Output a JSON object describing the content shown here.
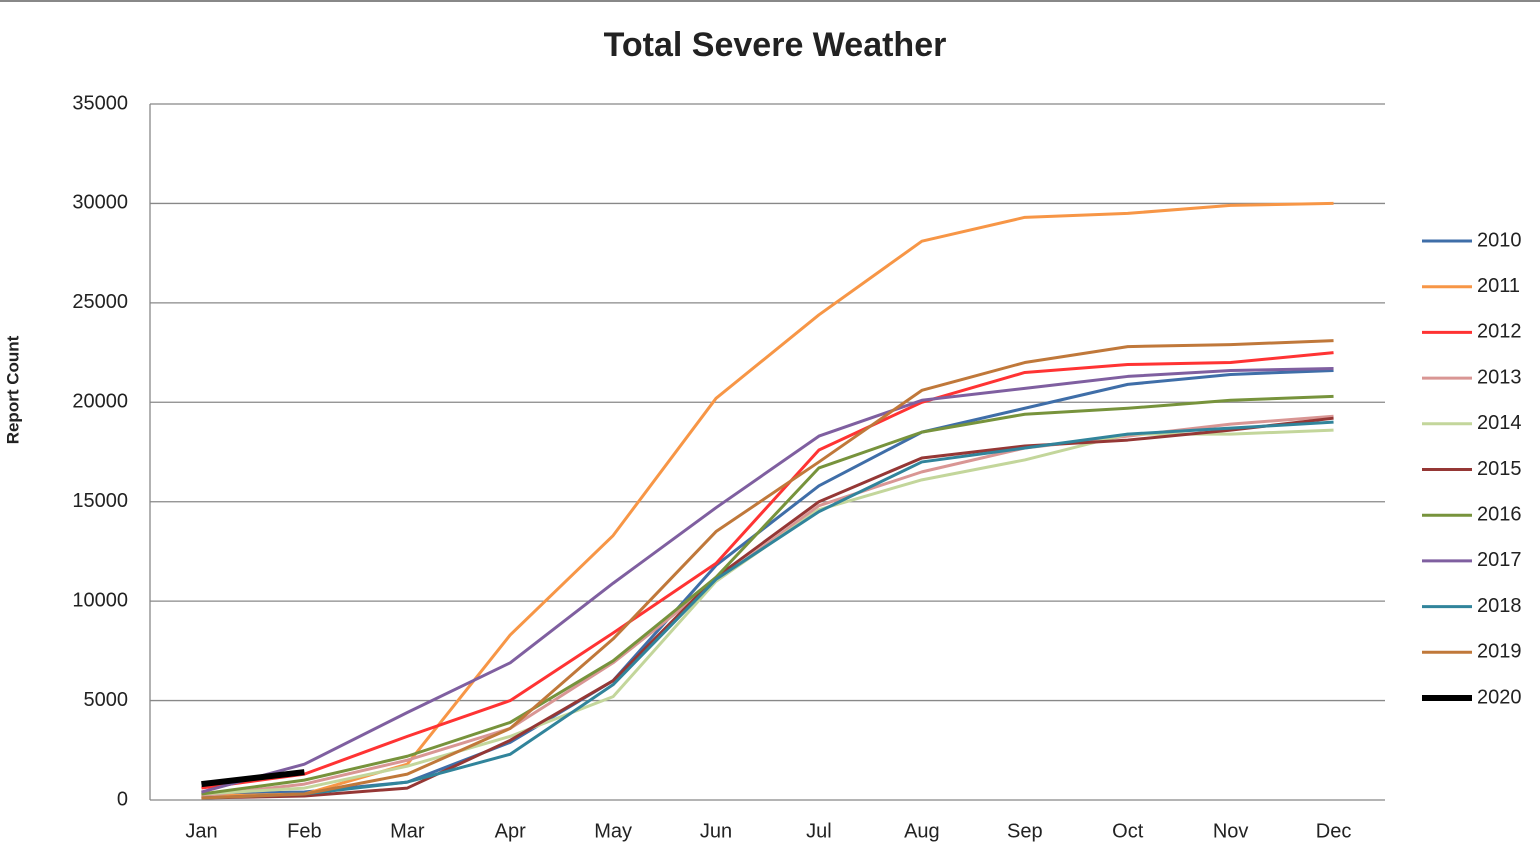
{
  "chart_data": {
    "type": "line",
    "title": "Total Severe Weather",
    "y_label": "Report Count",
    "categories": [
      "Jan",
      "Feb",
      "Mar",
      "Apr",
      "May",
      "Jun",
      "Jul",
      "Aug",
      "Sep",
      "Oct",
      "Nov",
      "Dec"
    ],
    "ylim": [
      0,
      35000
    ],
    "yticks": [
      0,
      5000,
      10000,
      15000,
      20000,
      25000,
      30000,
      35000
    ],
    "grid": true,
    "legend": "right",
    "series": [
      {
        "name": "2010",
        "color": "#3f6ea8",
        "values": [
          300,
          400,
          900,
          2900,
          6000,
          11800,
          15800,
          18500,
          19700,
          20900,
          21400,
          21600
        ]
      },
      {
        "name": "2011",
        "color": "#f79646",
        "values": [
          200,
          300,
          1800,
          8300,
          13300,
          20200,
          24400,
          28100,
          29300,
          29500,
          29900,
          30000
        ]
      },
      {
        "name": "2012",
        "color": "#ff3333",
        "values": [
          600,
          1300,
          3200,
          5000,
          8400,
          11900,
          17600,
          20000,
          21500,
          21900,
          22000,
          22500
        ]
      },
      {
        "name": "2013",
        "color": "#d99694",
        "values": [
          200,
          800,
          2000,
          3600,
          6900,
          11000,
          14800,
          16500,
          17700,
          18300,
          18900,
          19300
        ]
      },
      {
        "name": "2014",
        "color": "#c3d69b",
        "values": [
          300,
          600,
          1700,
          3200,
          5200,
          11000,
          14600,
          16100,
          17100,
          18400,
          18400,
          18600
        ]
      },
      {
        "name": "2015",
        "color": "#953735",
        "values": [
          100,
          200,
          600,
          3000,
          6000,
          11200,
          15000,
          17200,
          17800,
          18100,
          18600,
          19200
        ]
      },
      {
        "name": "2016",
        "color": "#77933c",
        "values": [
          300,
          1000,
          2200,
          3900,
          7000,
          11200,
          16700,
          18500,
          19400,
          19700,
          20100,
          20300
        ]
      },
      {
        "name": "2017",
        "color": "#7f5fa0",
        "values": [
          400,
          1800,
          4400,
          6900,
          10900,
          14700,
          18300,
          20100,
          20700,
          21300,
          21600,
          21700
        ]
      },
      {
        "name": "2018",
        "color": "#31849b",
        "values": [
          100,
          300,
          900,
          2300,
          5800,
          11100,
          14500,
          17000,
          17700,
          18400,
          18700,
          19000
        ]
      },
      {
        "name": "2019",
        "color": "#c0783a",
        "values": [
          100,
          300,
          1300,
          3600,
          8100,
          13500,
          17000,
          20600,
          22000,
          22800,
          22900,
          23100
        ]
      },
      {
        "name": "2020",
        "color": "#000000",
        "values": [
          800,
          1400,
          null,
          null,
          null,
          null,
          null,
          null,
          null,
          null,
          null,
          null
        ]
      }
    ]
  }
}
